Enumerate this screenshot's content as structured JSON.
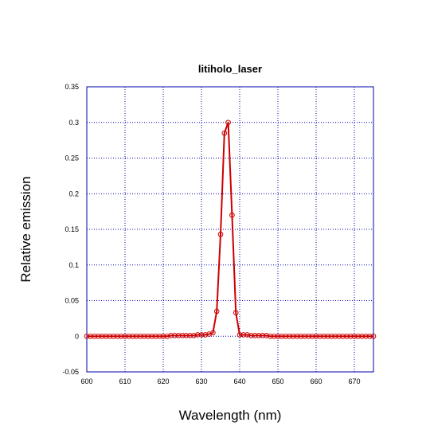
{
  "chart_data": {
    "type": "line",
    "title": "litiholo_laser",
    "xlabel": "Wavelength (nm)",
    "ylabel": "Relative emission",
    "xlim": [
      600,
      675
    ],
    "ylim": [
      -0.05,
      0.35
    ],
    "x_ticks": [
      600,
      610,
      620,
      630,
      640,
      650,
      660,
      670
    ],
    "x_tick_labels": [
      "600",
      "610",
      "620",
      "630",
      "640",
      "650",
      "660",
      "670"
    ],
    "y_ticks": [
      -0.05,
      0,
      0.05,
      0.1,
      0.15,
      0.2,
      0.25,
      0.3,
      0.35
    ],
    "y_tick_labels": [
      "-0.05",
      "0",
      "0.05",
      "0.1",
      "0.15",
      "0.2",
      "0.25",
      "0.3",
      "0.35"
    ],
    "grid": true,
    "colors": {
      "line": "#cc0000",
      "markers": "#cc0000",
      "grid": "#0000aa",
      "frame": "#0000aa"
    },
    "series": [
      {
        "marker": "open-circle",
        "x": [
          600,
          601,
          602,
          603,
          604,
          605,
          606,
          607,
          608,
          609,
          610,
          611,
          612,
          613,
          614,
          615,
          616,
          617,
          618,
          619,
          620,
          621,
          622,
          623,
          624,
          625,
          626,
          627,
          628,
          629,
          630,
          631,
          632,
          633,
          634,
          635,
          636,
          637,
          638,
          639,
          640,
          641,
          642,
          643,
          644,
          645,
          646,
          647,
          648,
          649,
          650,
          651,
          652,
          653,
          654,
          655,
          656,
          657,
          658,
          659,
          660,
          661,
          662,
          663,
          664,
          665,
          666,
          667,
          668,
          669,
          670,
          671,
          672,
          673,
          674,
          675
        ],
        "y": [
          0,
          0,
          0,
          0,
          0,
          0,
          0,
          0,
          0,
          0,
          0,
          0,
          0,
          0,
          0,
          0,
          0,
          0,
          0,
          0,
          0,
          0,
          0.001,
          0.001,
          0.001,
          0.001,
          0.001,
          0.001,
          0.001,
          0.002,
          0.002,
          0.002,
          0.003,
          0.005,
          0.035,
          0.143,
          0.285,
          0.3,
          0.17,
          0.033,
          0.002,
          0.002,
          0.002,
          0.001,
          0.001,
          0.001,
          0.001,
          0.001,
          0,
          0,
          0,
          0,
          0,
          0,
          0,
          0,
          0,
          0,
          0,
          0,
          0,
          0,
          0,
          0,
          0,
          0,
          0,
          0,
          0,
          0,
          0,
          0,
          0,
          0,
          0,
          0
        ]
      }
    ]
  }
}
